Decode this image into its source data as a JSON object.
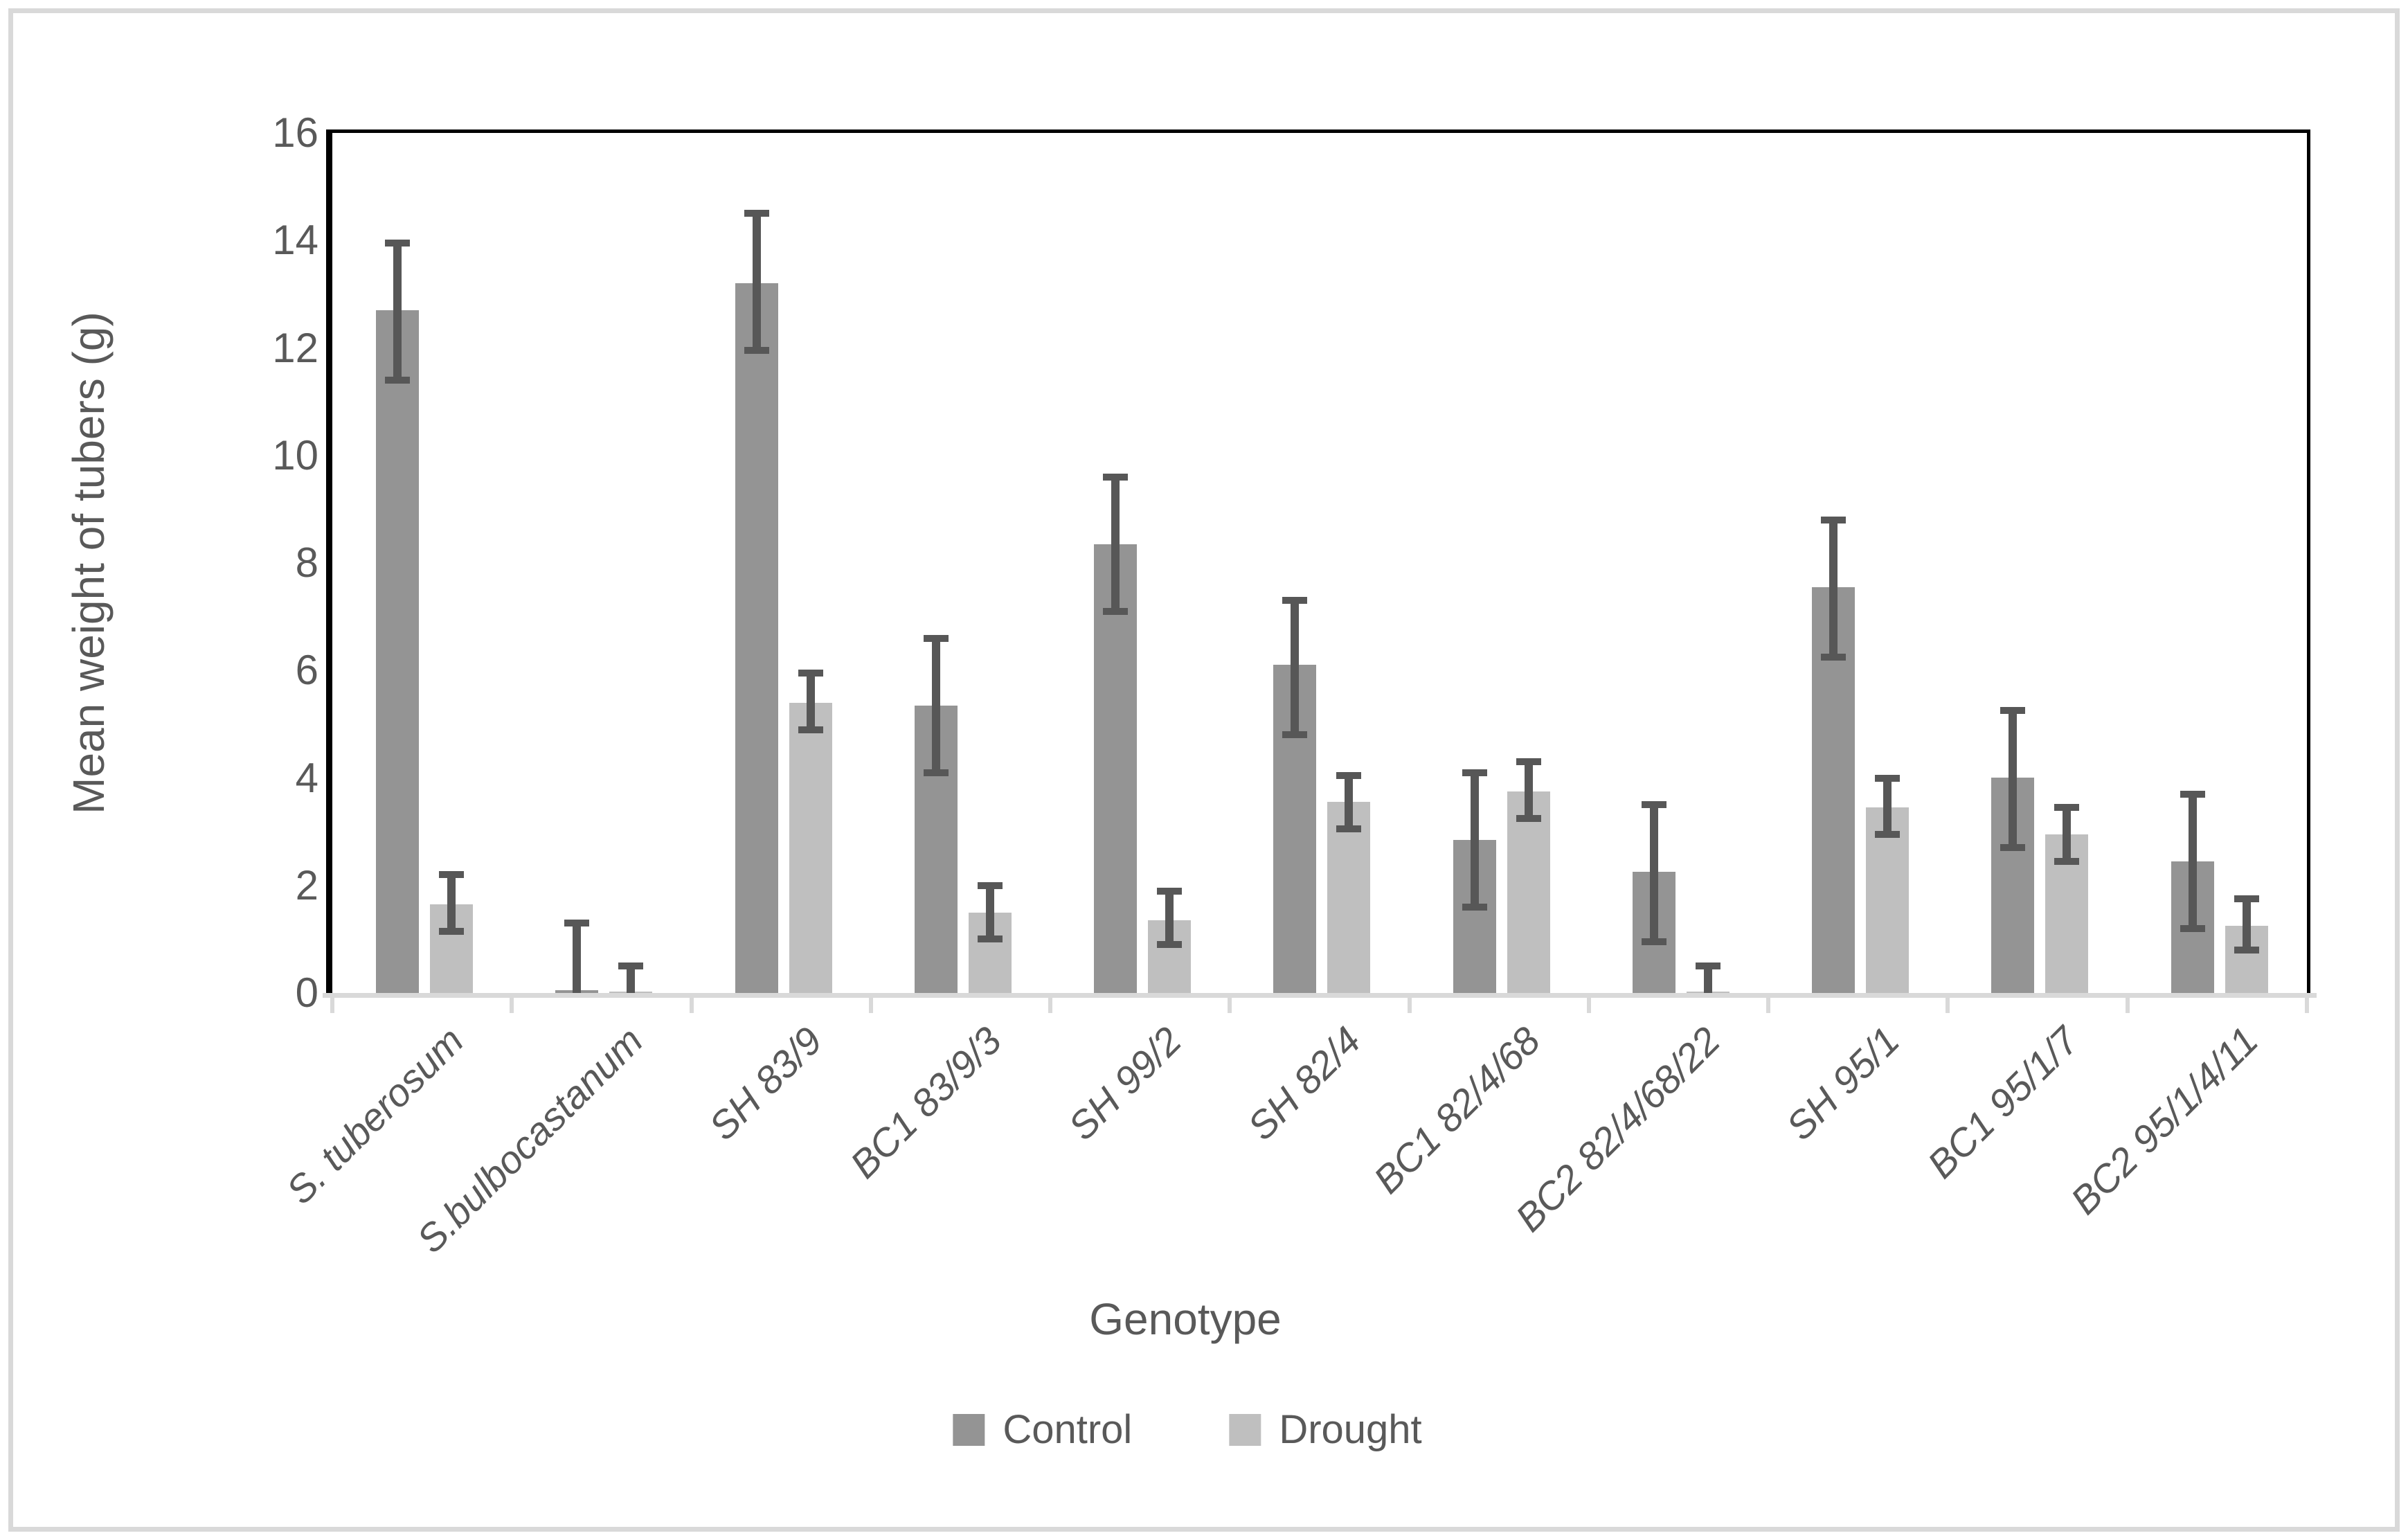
{
  "chart_data": {
    "type": "bar",
    "title": "",
    "xlabel": "Genotype",
    "ylabel": "Mean weight of tubers (g)",
    "ylim": [
      0,
      16
    ],
    "yticks": [
      0,
      2,
      4,
      6,
      8,
      10,
      12,
      14,
      16
    ],
    "grid": false,
    "legend_position": "bottom",
    "categories": [
      "S. tuberosum",
      "S.bulbocastanum",
      "SH 83/9",
      "BC1 83/9/3",
      "SH 99/2",
      "SH 82/4",
      "BC1 82/4/68",
      "BC2 82/4/68/22",
      "SH 95/1",
      "BC1 95/1/7",
      "BC2 95/1/4/11"
    ],
    "series": [
      {
        "name": "Control",
        "color": "#949494",
        "values": [
          12.7,
          0.05,
          13.2,
          5.35,
          8.35,
          6.1,
          2.85,
          2.25,
          7.55,
          4.0,
          2.45
        ],
        "err_low": [
          11.4,
          0,
          11.95,
          4.1,
          7.1,
          4.8,
          1.6,
          0.95,
          6.25,
          2.7,
          1.2
        ],
        "err_high": [
          13.95,
          1.3,
          14.5,
          6.6,
          9.6,
          7.3,
          4.1,
          3.5,
          8.8,
          5.25,
          3.7
        ]
      },
      {
        "name": "Drought",
        "color": "#bfbfbf",
        "values": [
          1.65,
          0.03,
          5.4,
          1.5,
          1.35,
          3.55,
          3.75,
          0.03,
          3.45,
          2.95,
          1.25
        ],
        "err_low": [
          1.15,
          0,
          4.9,
          1.0,
          0.9,
          3.05,
          3.25,
          0,
          2.95,
          2.45,
          0.8
        ],
        "err_high": [
          2.2,
          0.5,
          5.95,
          2.0,
          1.9,
          4.05,
          4.3,
          0.5,
          4.0,
          3.45,
          1.75
        ]
      }
    ],
    "error_bar_color": "#575757",
    "axis_line_color": "#000000",
    "baseline_color": "#d9d9d9",
    "text_color": "#595959"
  }
}
